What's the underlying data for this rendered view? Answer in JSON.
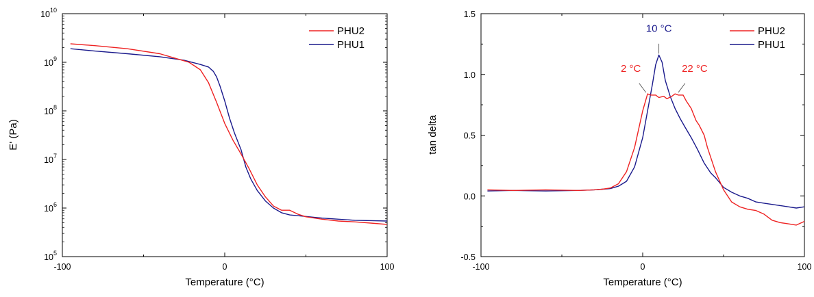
{
  "chart_data": [
    {
      "type": "line",
      "title": "",
      "xlabel": "Temperature (°C)",
      "ylabel": "E' (Pa)",
      "xlim": [
        -100,
        100
      ],
      "ylim": [
        100000,
        10000000000
      ],
      "y_scale": "log",
      "x_ticks": [
        -100,
        0,
        100
      ],
      "y_ticks": [
        {
          "base": "10",
          "exp": "5"
        },
        {
          "base": "10",
          "exp": "6"
        },
        {
          "base": "10",
          "exp": "7"
        },
        {
          "base": "10",
          "exp": "8"
        },
        {
          "base": "10",
          "exp": "9"
        },
        {
          "base": "10",
          "exp": "10"
        }
      ],
      "legend_position": "top-right",
      "grid": false,
      "series": [
        {
          "name": "PHU2",
          "color": "#ee2222",
          "x": [
            -95,
            -80,
            -60,
            -40,
            -30,
            -22,
            -15,
            -10,
            -5,
            0,
            5,
            10,
            15,
            20,
            25,
            30,
            35,
            40,
            45,
            50,
            60,
            70,
            80,
            90,
            100
          ],
          "y": [
            2400000000,
            2200000000,
            1900000000,
            1500000000,
            1200000000,
            1000000000,
            700000000,
            380000000,
            150000000,
            55000000,
            25000000,
            13000000,
            6500000,
            3000000,
            1700000,
            1100000,
            900000,
            900000,
            750000,
            660000,
            590000,
            540000,
            520000,
            490000,
            460000
          ]
        },
        {
          "name": "PHU1",
          "color": "#1a1a8c",
          "x": [
            -95,
            -80,
            -60,
            -40,
            -25,
            -15,
            -10,
            -7,
            -5,
            -3,
            0,
            3,
            6,
            10,
            13,
            16,
            20,
            25,
            30,
            35,
            40,
            50,
            60,
            70,
            80,
            90,
            100
          ],
          "y": [
            1900000000,
            1700000000,
            1500000000,
            1300000000,
            1100000000,
            900000000,
            800000000,
            650000000,
            500000000,
            330000000,
            160000000,
            70000000,
            35000000,
            16000000,
            7000000,
            4000000,
            2300000,
            1400000,
            1000000,
            800000,
            720000,
            670000,
            620000,
            590000,
            560000,
            550000,
            540000
          ]
        }
      ]
    },
    {
      "type": "line",
      "title": "",
      "xlabel": "Temperature (°C)",
      "ylabel": "tan delta",
      "xlim": [
        -100,
        100
      ],
      "ylim": [
        -0.5,
        1.5
      ],
      "x_ticks": [
        -100,
        0,
        100
      ],
      "y_ticks": [
        -0.5,
        0.0,
        0.5,
        1.0,
        1.5
      ],
      "y_tick_labels": [
        "-0.5",
        "0.0",
        "0.5",
        "1.0",
        "1.5"
      ],
      "legend_position": "top-right",
      "grid": false,
      "series": [
        {
          "name": "PHU2",
          "color": "#ee2222",
          "x": [
            -96,
            -80,
            -60,
            -40,
            -30,
            -25,
            -20,
            -15,
            -10,
            -5,
            0,
            3,
            5,
            8,
            10,
            13,
            15,
            18,
            20,
            22,
            25,
            27,
            30,
            33,
            35,
            38,
            40,
            45,
            50,
            55,
            60,
            65,
            70,
            75,
            80,
            85,
            90,
            95,
            100
          ],
          "y": [
            0.05,
            0.045,
            0.05,
            0.045,
            0.05,
            0.055,
            0.065,
            0.1,
            0.2,
            0.4,
            0.7,
            0.84,
            0.83,
            0.83,
            0.81,
            0.82,
            0.8,
            0.82,
            0.84,
            0.83,
            0.83,
            0.78,
            0.72,
            0.62,
            0.58,
            0.5,
            0.4,
            0.2,
            0.05,
            -0.05,
            -0.09,
            -0.11,
            -0.12,
            -0.15,
            -0.2,
            -0.22,
            -0.23,
            -0.24,
            -0.21
          ]
        },
        {
          "name": "PHU1",
          "color": "#1a1a8c",
          "x": [
            -96,
            -80,
            -60,
            -40,
            -30,
            -25,
            -20,
            -15,
            -10,
            -5,
            0,
            3,
            6,
            8,
            10,
            12,
            14,
            17,
            20,
            23,
            26,
            30,
            34,
            38,
            42,
            45,
            50,
            55,
            60,
            65,
            70,
            75,
            80,
            85,
            90,
            95,
            100
          ],
          "y": [
            0.04,
            0.045,
            0.04,
            0.045,
            0.05,
            0.055,
            0.06,
            0.08,
            0.12,
            0.24,
            0.48,
            0.7,
            0.92,
            1.08,
            1.16,
            1.1,
            0.95,
            0.82,
            0.72,
            0.64,
            0.57,
            0.48,
            0.38,
            0.27,
            0.19,
            0.15,
            0.07,
            0.03,
            0.0,
            -0.02,
            -0.05,
            -0.06,
            -0.07,
            -0.08,
            -0.09,
            -0.1,
            -0.09
          ]
        }
      ],
      "annotations": [
        {
          "text": "2 °C",
          "color": "#ee2222",
          "x": 2,
          "y": 0.84
        },
        {
          "text": "10 °C",
          "color": "#1a1a8c",
          "x": 10,
          "y": 1.16
        },
        {
          "text": "22 °C",
          "color": "#ee2222",
          "x": 22,
          "y": 0.84
        }
      ]
    }
  ]
}
